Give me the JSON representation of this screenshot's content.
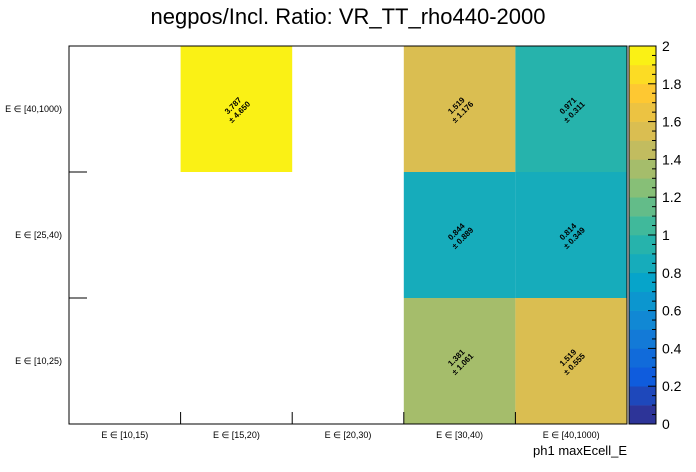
{
  "chart_data": {
    "type": "heatmap",
    "title": "negpos/Incl. Ratio: VR_TT_rho440-2000",
    "xlabel": "ph1 maxEcell_E",
    "ylabel": "",
    "x_categories": [
      "E ∈ [10,15)",
      "E ∈ [15,20)",
      "E ∈ [20,30)",
      "E ∈ [30,40)",
      "E ∈ [40,1000)"
    ],
    "y_categories": [
      "E ∈ [10,25)",
      "E ∈ [25,40)",
      "E ∈ [40,1000)"
    ],
    "cells": [
      {
        "x": 1,
        "y": 2,
        "value": 3.787,
        "error": 4.65,
        "value_text": "3.787",
        "error_text": "± 4.650"
      },
      {
        "x": 3,
        "y": 2,
        "value": 1.519,
        "error": 1.176,
        "value_text": "1.519",
        "error_text": "± 1.176"
      },
      {
        "x": 4,
        "y": 2,
        "value": 0.971,
        "error": 0.311,
        "value_text": "0.971",
        "error_text": "± 0.311"
      },
      {
        "x": 3,
        "y": 1,
        "value": 0.844,
        "error": 0.889,
        "value_text": "0.844",
        "error_text": "± 0.889"
      },
      {
        "x": 4,
        "y": 1,
        "value": 0.814,
        "error": 0.349,
        "value_text": "0.814",
        "error_text": "± 0.349"
      },
      {
        "x": 3,
        "y": 0,
        "value": 1.381,
        "error": 1.061,
        "value_text": "1.381",
        "error_text": "± 1.061"
      },
      {
        "x": 4,
        "y": 0,
        "value": 1.519,
        "error": 0.555,
        "value_text": "1.519",
        "error_text": "± 0.555"
      }
    ],
    "zlim": [
      0,
      2
    ],
    "colorbar_ticks": [
      "0",
      "0.2",
      "0.4",
      "0.6",
      "0.8",
      "1",
      "1.2",
      "1.4",
      "1.6",
      "1.8",
      "2"
    ],
    "colorbar_palette": [
      "#352a87",
      "#0f5cdd",
      "#1481d6",
      "#06a4ca",
      "#2eb7a4",
      "#87bf77",
      "#d1bb59",
      "#fec832",
      "#f9fb0e"
    ],
    "grid": false,
    "legend": "colorbar-right"
  }
}
